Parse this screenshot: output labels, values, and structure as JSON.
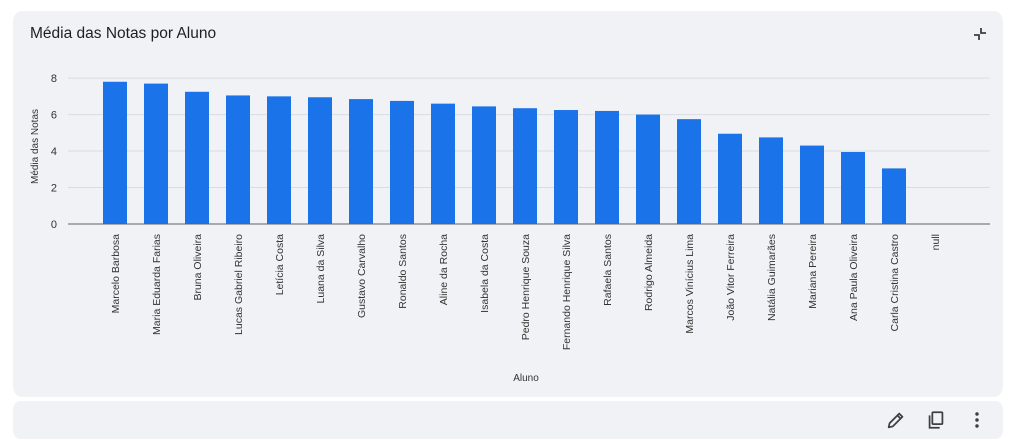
{
  "card": {
    "title": "Média das Notas por Aluno",
    "collapse_icon": "collapse-icon"
  },
  "footer": {
    "edit_icon": "pencil-icon",
    "copy_icon": "copy-icon",
    "more_icon": "more-vert-icon"
  },
  "colors": {
    "bar": "#1a73e8",
    "grid": "#d9dce1",
    "axis": "#5f6368",
    "icon": "#3c4043"
  },
  "chart_data": {
    "type": "bar",
    "title": "Média das Notas por Aluno",
    "xlabel": "Aluno",
    "ylabel": "Média das Notas",
    "ylim": [
      0,
      8.5
    ],
    "yticks": [
      0,
      2,
      4,
      6,
      8
    ],
    "grid": true,
    "legend": "none",
    "categories": [
      "Marcelo Barbosa",
      "Maria Eduarda Farias",
      "Bruna Oliveira",
      "Lucas Gabriel Ribeiro",
      "Letícia Costa",
      "Luana da Silva",
      "Gustavo Carvalho",
      "Ronaldo Santos",
      "Aline da Rocha",
      "Isabela da Costa",
      "Pedro Henrique Souza",
      "Fernando Henrique Silva",
      "Rafaela Santos",
      "Rodrigo Almeida",
      "Marcos Vinícius Lima",
      "João Vitor Ferreira",
      "Natália Guimarães",
      "Mariana Pereira",
      "Ana Paula Oliveira",
      "Carla Cristina Castro",
      "null"
    ],
    "values": [
      7.8,
      7.7,
      7.25,
      7.05,
      7.0,
      6.95,
      6.85,
      6.75,
      6.6,
      6.45,
      6.35,
      6.25,
      6.2,
      6.0,
      5.75,
      4.95,
      4.75,
      4.3,
      3.95,
      3.05,
      null
    ]
  }
}
